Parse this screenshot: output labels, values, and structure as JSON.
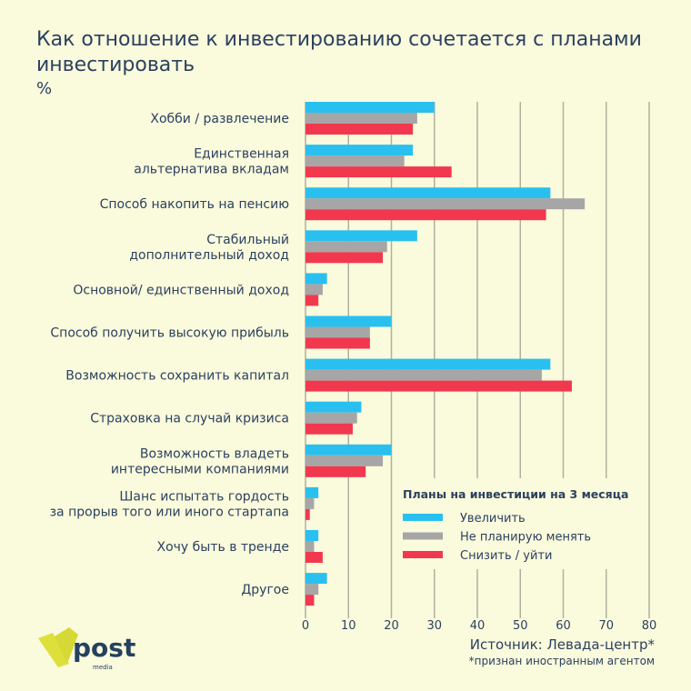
{
  "header": {
    "title": "Как отношение к инвестированию сочетается с планами инвестировать",
    "unit": "%"
  },
  "footer": {
    "source": "Источник: Левада-центр*",
    "note": "*признан иностранным агентом",
    "logo": "post media"
  },
  "colors": {
    "increase": "#29c0f0",
    "nochange": "#a6a6a6",
    "decrease": "#f2384f",
    "text": "#2b4160",
    "grid": "#b0b0a0"
  },
  "chart_data": {
    "type": "bar",
    "orientation": "horizontal",
    "title": "Как отношение к инвестированию сочетается с планами инвестировать",
    "xlabel": "",
    "ylabel": "",
    "xlim": [
      0,
      80
    ],
    "xticks": [
      0,
      10,
      20,
      30,
      40,
      50,
      60,
      70,
      80
    ],
    "grid": true,
    "legend_title": "Планы на инвестиции на 3 месяца",
    "legend_position": "bottom-right",
    "categories": [
      [
        "Хобби / развлечение"
      ],
      [
        "Единственная",
        "альтернатива вкладам"
      ],
      [
        "Способ накопить на пенсию"
      ],
      [
        "Стабильный",
        "дополнительный доход"
      ],
      [
        "Основной/ единственный доход"
      ],
      [
        "Способ получить высокую прибыль"
      ],
      [
        "Возможность сохранить капитал"
      ],
      [
        "Страховка на случай кризиса"
      ],
      [
        "Возможность владеть",
        "интересными компаниями"
      ],
      [
        "Шанс испытать гордость",
        "за прорыв того или иного стартапа"
      ],
      [
        "Хочу быть в тренде"
      ],
      [
        "Другое"
      ]
    ],
    "series": [
      {
        "name": "Увеличить",
        "values": [
          30,
          25,
          57,
          26,
          5,
          20,
          57,
          13,
          20,
          3,
          3,
          5
        ]
      },
      {
        "name": "Не планирую менять",
        "values": [
          26,
          23,
          65,
          19,
          4,
          15,
          55,
          12,
          18,
          2,
          2,
          3
        ]
      },
      {
        "name": "Снизить / уйти",
        "values": [
          25,
          34,
          56,
          18,
          3,
          15,
          62,
          11,
          14,
          1,
          4,
          2
        ]
      }
    ]
  }
}
